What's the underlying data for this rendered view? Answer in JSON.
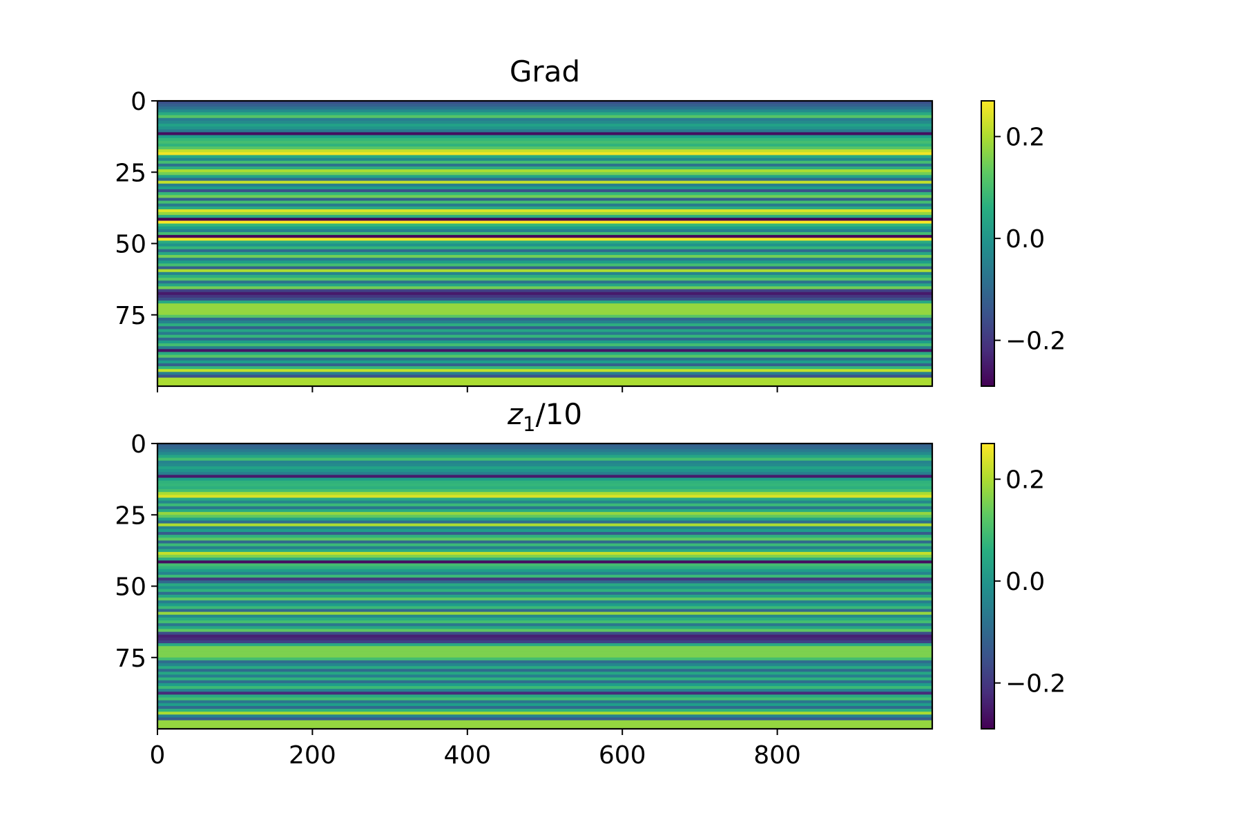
{
  "chart_data": [
    {
      "type": "heatmap",
      "title": "Grad",
      "xlabel": "",
      "ylabel": "",
      "x_ticks": [
        0,
        200,
        400,
        600,
        800
      ],
      "x_tick_labels_visible": false,
      "xlim": [
        0,
        999
      ],
      "y_ticks": [
        0,
        25,
        50,
        75
      ],
      "ylim": [
        0,
        99
      ],
      "y_inverted": true,
      "colormap": "viridis",
      "vmin": -0.29,
      "vmax": 0.27,
      "colorbar_ticks": [
        0.2,
        0.0,
        -0.2
      ],
      "colorbar_tick_labels": [
        "0.2",
        "0.0",
        "−0.2"
      ],
      "rows_constant_along_x": true,
      "row_values": [
        -0.15,
        -0.12,
        -0.08,
        -0.02,
        0.05,
        0.12,
        -0.05,
        -0.02,
        0.03,
        0.0,
        -0.06,
        -0.27,
        0.02,
        0.08,
        0.1,
        0.07,
        0.12,
        0.22,
        0.26,
        0.05,
        -0.03,
        0.1,
        -0.08,
        0.06,
        0.2,
        0.15,
        0.03,
        -0.1,
        0.22,
        -0.05,
        0.02,
        -0.15,
        0.08,
        0.15,
        -0.12,
        0.1,
        -0.06,
        0.05,
        0.24,
        0.18,
        0.05,
        -0.29,
        0.27,
        0.08,
        0.02,
        -0.05,
        0.1,
        -0.28,
        0.26,
        0.05,
        0.0,
        0.08,
        -0.1,
        0.04,
        0.15,
        -0.06,
        0.02,
        0.1,
        -0.12,
        0.2,
        -0.04,
        0.06,
        0.12,
        -0.08,
        0.04,
        0.15,
        -0.18,
        -0.25,
        -0.2,
        -0.15,
        0.05,
        0.18,
        0.18,
        0.18,
        0.18,
        0.12,
        -0.1,
        -0.04,
        0.06,
        -0.12,
        0.04,
        -0.06,
        0.08,
        -0.1,
        0.02,
        0.1,
        -0.05,
        -0.26,
        0.05,
        0.12,
        -0.08,
        0.02,
        -0.12,
        0.08,
        0.22,
        -0.05,
        -0.15,
        0.2,
        0.2,
        0.2
      ]
    },
    {
      "type": "heatmap",
      "title": "z1/10",
      "xlabel": "",
      "ylabel": "",
      "x_ticks": [
        0,
        200,
        400,
        600,
        800
      ],
      "x_tick_labels": [
        "0",
        "200",
        "400",
        "600",
        "800"
      ],
      "xlim": [
        0,
        999
      ],
      "y_ticks": [
        0,
        25,
        50,
        75
      ],
      "ylim": [
        0,
        99
      ],
      "y_inverted": true,
      "colormap": "viridis",
      "vmin": -0.29,
      "vmax": 0.27,
      "colorbar_ticks": [
        0.2,
        0.0,
        -0.2
      ],
      "colorbar_tick_labels": [
        "0.2",
        "0.0",
        "−0.2"
      ],
      "rows_constant_along_x": true,
      "row_values": [
        -0.12,
        -0.1,
        -0.06,
        -0.02,
        0.04,
        0.1,
        -0.04,
        -0.02,
        0.03,
        0.0,
        -0.05,
        -0.25,
        0.02,
        0.07,
        0.08,
        0.06,
        0.1,
        0.2,
        0.24,
        0.05,
        -0.03,
        0.09,
        -0.07,
        0.05,
        0.18,
        0.13,
        0.03,
        -0.09,
        0.2,
        -0.04,
        0.02,
        -0.13,
        0.07,
        0.13,
        -0.1,
        0.09,
        -0.05,
        0.05,
        0.22,
        0.16,
        0.05,
        -0.27,
        0.1,
        0.07,
        0.02,
        -0.04,
        0.09,
        -0.2,
        -0.1,
        0.05,
        0.0,
        0.07,
        -0.09,
        0.04,
        0.13,
        -0.05,
        0.02,
        0.09,
        -0.1,
        0.18,
        -0.03,
        0.05,
        0.1,
        -0.07,
        0.04,
        0.13,
        -0.16,
        -0.24,
        -0.22,
        -0.18,
        0.05,
        0.16,
        0.16,
        0.16,
        0.16,
        0.1,
        -0.09,
        -0.03,
        0.05,
        -0.1,
        0.04,
        -0.05,
        0.07,
        -0.09,
        0.02,
        0.09,
        -0.04,
        -0.22,
        0.05,
        0.1,
        -0.07,
        0.02,
        -0.1,
        0.07,
        0.2,
        -0.04,
        -0.13,
        0.18,
        0.18,
        0.18
      ]
    }
  ],
  "titles": {
    "top": "Grad",
    "bottom_var": "z",
    "bottom_sub": "1",
    "bottom_rest": "/10"
  },
  "colors": {
    "frame": "#000000",
    "background": "#ffffff"
  }
}
